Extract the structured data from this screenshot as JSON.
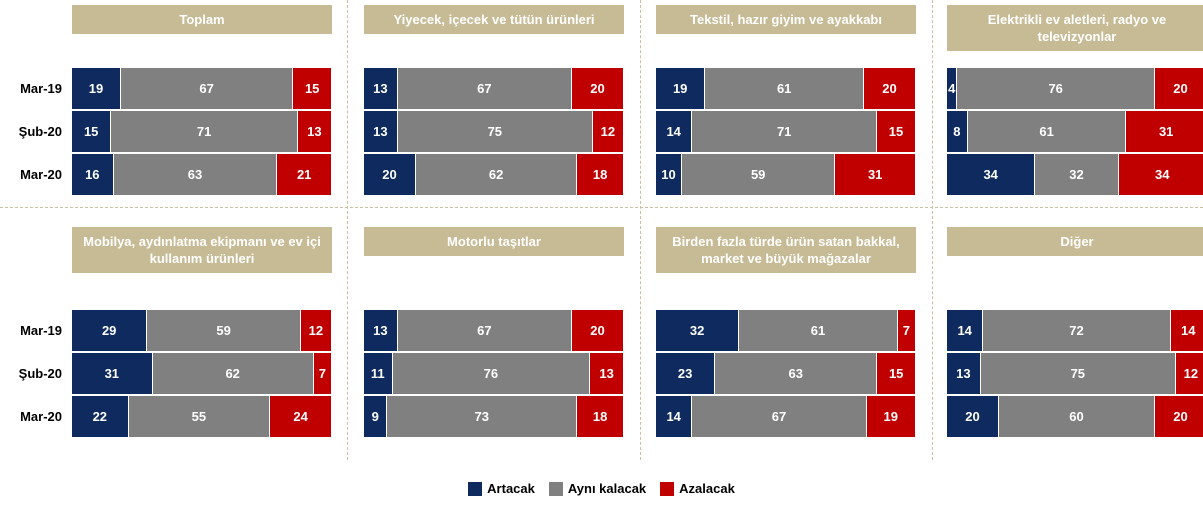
{
  "chart_data": [
    {
      "type": "bar",
      "stacked": true,
      "title": "Toplam",
      "categories": [
        "Mar-19",
        "Şub-20",
        "Mar-20"
      ],
      "series": [
        {
          "name": "Artacak",
          "color": "#0e2a5e",
          "values": [
            19,
            15,
            16
          ]
        },
        {
          "name": "Aynı kalacak",
          "color": "#808080",
          "values": [
            67,
            71,
            63
          ]
        },
        {
          "name": "Azalacak",
          "color": "#c00000",
          "values": [
            15,
            13,
            21
          ]
        }
      ]
    },
    {
      "type": "bar",
      "stacked": true,
      "title": "Yiyecek, içecek ve tütün ürünleri",
      "series": [
        {
          "name": "Artacak",
          "color": "#0e2a5e",
          "values": [
            13,
            13,
            20
          ]
        },
        {
          "name": "Aynı kalacak",
          "color": "#808080",
          "values": [
            67,
            75,
            62
          ]
        },
        {
          "name": "Azalacak",
          "color": "#c00000",
          "values": [
            20,
            12,
            18
          ]
        }
      ]
    },
    {
      "type": "bar",
      "stacked": true,
      "title": "Tekstil, hazır giyim ve ayakkabı",
      "series": [
        {
          "name": "Artacak",
          "color": "#0e2a5e",
          "values": [
            19,
            14,
            10
          ]
        },
        {
          "name": "Aynı kalacak",
          "color": "#808080",
          "values": [
            61,
            71,
            59
          ]
        },
        {
          "name": "Azalacak",
          "color": "#c00000",
          "values": [
            20,
            15,
            31
          ]
        }
      ]
    },
    {
      "type": "bar",
      "stacked": true,
      "title": "Elektrikli ev aletleri, radyo ve televizyonlar",
      "series": [
        {
          "name": "Artacak",
          "color": "#0e2a5e",
          "values": [
            4,
            8,
            34
          ]
        },
        {
          "name": "Aynı kalacak",
          "color": "#808080",
          "values": [
            76,
            61,
            32
          ]
        },
        {
          "name": "Azalacak",
          "color": "#c00000",
          "values": [
            20,
            31,
            34
          ]
        }
      ]
    },
    {
      "type": "bar",
      "stacked": true,
      "title": "Mobilya, aydınlatma ekipmanı ve ev içi kullanım ürünleri",
      "categories": [
        "Mar-19",
        "Şub-20",
        "Mar-20"
      ],
      "series": [
        {
          "name": "Artacak",
          "color": "#0e2a5e",
          "values": [
            29,
            31,
            22
          ]
        },
        {
          "name": "Aynı kalacak",
          "color": "#808080",
          "values": [
            59,
            62,
            55
          ]
        },
        {
          "name": "Azalacak",
          "color": "#c00000",
          "values": [
            12,
            7,
            24
          ]
        }
      ]
    },
    {
      "type": "bar",
      "stacked": true,
      "title": "Motorlu taşıtlar",
      "series": [
        {
          "name": "Artacak",
          "color": "#0e2a5e",
          "values": [
            13,
            11,
            9
          ]
        },
        {
          "name": "Aynı kalacak",
          "color": "#808080",
          "values": [
            67,
            76,
            73
          ]
        },
        {
          "name": "Azalacak",
          "color": "#c00000",
          "values": [
            20,
            13,
            18
          ]
        }
      ]
    },
    {
      "type": "bar",
      "stacked": true,
      "title": "Birden fazla türde ürün satan bakkal, market ve büyük mağazalar",
      "series": [
        {
          "name": "Artacak",
          "color": "#0e2a5e",
          "values": [
            32,
            23,
            14
          ]
        },
        {
          "name": "Aynı kalacak",
          "color": "#808080",
          "values": [
            61,
            63,
            67
          ]
        },
        {
          "name": "Azalacak",
          "color": "#c00000",
          "values": [
            7,
            15,
            19
          ]
        }
      ]
    },
    {
      "type": "bar",
      "stacked": true,
      "title": "Diğer",
      "series": [
        {
          "name": "Artacak",
          "color": "#0e2a5e",
          "values": [
            14,
            13,
            20
          ]
        },
        {
          "name": "Aynı kalacak",
          "color": "#808080",
          "values": [
            72,
            75,
            60
          ]
        },
        {
          "name": "Azalacak",
          "color": "#c00000",
          "values": [
            14,
            12,
            20
          ]
        }
      ]
    }
  ]
}
